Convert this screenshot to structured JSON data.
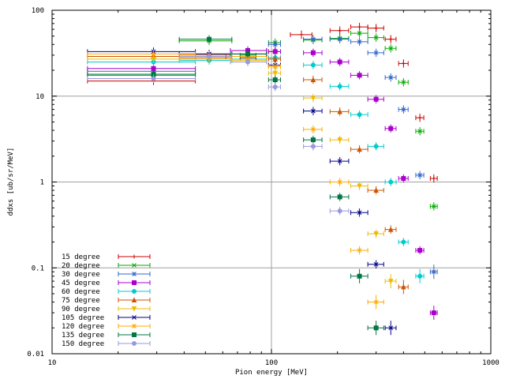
{
  "chart_data": {
    "type": "scatter",
    "title": "",
    "xlabel": "Pion energy [MeV]",
    "ylabel": "ddxs [ub/sr/MeV]",
    "x_scale": "log",
    "y_scale": "log",
    "xlim": [
      10,
      1000
    ],
    "ylim": [
      0.01,
      100
    ],
    "x_ticks": [
      10,
      100,
      1000
    ],
    "x_tick_labels": [
      "10",
      "100",
      "1000"
    ],
    "y_ticks": [
      0.01,
      0.1,
      1,
      10,
      100
    ],
    "y_tick_labels": [
      "0.01",
      "0.1",
      "1",
      "10",
      "100"
    ],
    "grid": true,
    "legend_position": "bottom-left",
    "series": [
      {
        "name": "15 degree",
        "color": "#cc0000",
        "marker": "plus",
        "points": [
          [
            29,
            15,
            14.5,
            45
          ],
          [
            52,
            29,
            45,
            62
          ],
          [
            78,
            28,
            72,
            85
          ],
          [
            104,
            33,
            97,
            110
          ],
          [
            137,
            52,
            122,
            153
          ],
          [
            205,
            58,
            185,
            225
          ],
          [
            252,
            64,
            230,
            275
          ],
          [
            300,
            62,
            275,
            325
          ],
          [
            350,
            46,
            330,
            370
          ],
          [
            400,
            24,
            380,
            420
          ],
          [
            475,
            5.6,
            455,
            495
          ],
          [
            550,
            1.1,
            530,
            570
          ]
        ]
      },
      {
        "name": "20 degree",
        "color": "#00aa00",
        "marker": "x",
        "points": [
          [
            29,
            17.5,
            14.5,
            45
          ],
          [
            52,
            44,
            38,
            66
          ],
          [
            78,
            30,
            72,
            85
          ],
          [
            104,
            42,
            97,
            110
          ],
          [
            155,
            45,
            140,
            170
          ],
          [
            205,
            47,
            185,
            225
          ],
          [
            252,
            54,
            230,
            275
          ],
          [
            300,
            48,
            275,
            325
          ],
          [
            350,
            36,
            330,
            370
          ],
          [
            400,
            14.5,
            380,
            420
          ],
          [
            475,
            3.9,
            455,
            495
          ],
          [
            550,
            0.52,
            530,
            570
          ]
        ]
      },
      {
        "name": "30 degree",
        "color": "#3366cc",
        "marker": "star",
        "points": [
          [
            29,
            19.5,
            14.5,
            45
          ],
          [
            52,
            31,
            38,
            66
          ],
          [
            78,
            34,
            65,
            95
          ],
          [
            104,
            40,
            97,
            110
          ],
          [
            155,
            46,
            140,
            170
          ],
          [
            205,
            46,
            185,
            225
          ],
          [
            252,
            43,
            230,
            275
          ],
          [
            300,
            32,
            275,
            325
          ],
          [
            350,
            16.5,
            330,
            370
          ],
          [
            400,
            7,
            380,
            420
          ],
          [
            475,
            1.2,
            455,
            495
          ],
          [
            550,
            0.09,
            530,
            570
          ]
        ]
      },
      {
        "name": "45 degree",
        "color": "#aa00cc",
        "marker": "box",
        "points": [
          [
            29,
            21,
            14.5,
            45
          ],
          [
            52,
            30,
            38,
            66
          ],
          [
            78,
            34,
            65,
            95
          ],
          [
            104,
            33,
            97,
            110
          ],
          [
            155,
            32,
            140,
            170
          ],
          [
            205,
            25,
            185,
            225
          ],
          [
            252,
            17.5,
            230,
            275
          ],
          [
            300,
            9.2,
            275,
            325
          ],
          [
            350,
            4.2,
            330,
            370
          ],
          [
            400,
            1.1,
            380,
            420
          ],
          [
            475,
            0.16,
            455,
            495
          ],
          [
            550,
            0.03,
            530,
            570
          ]
        ]
      },
      {
        "name": "60 degree",
        "color": "#00cccc",
        "marker": "circle",
        "points": [
          [
            29,
            25,
            14.5,
            45
          ],
          [
            52,
            26,
            38,
            66
          ],
          [
            78,
            27,
            65,
            95
          ],
          [
            104,
            28,
            97,
            110
          ],
          [
            155,
            23,
            140,
            170
          ],
          [
            205,
            13,
            185,
            225
          ],
          [
            252,
            6.1,
            230,
            275
          ],
          [
            300,
            2.6,
            275,
            325
          ],
          [
            350,
            1.0,
            330,
            370
          ],
          [
            400,
            0.2,
            380,
            420
          ],
          [
            475,
            0.08,
            455,
            495
          ]
        ]
      },
      {
        "name": "75 degree",
        "color": "#cc5500",
        "marker": "triangle",
        "points": [
          [
            29,
            29,
            14.5,
            45
          ],
          [
            52,
            28,
            38,
            66
          ],
          [
            78,
            29,
            65,
            95
          ],
          [
            104,
            27,
            97,
            110
          ],
          [
            155,
            15.5,
            140,
            170
          ],
          [
            205,
            6.6,
            185,
            225
          ],
          [
            252,
            2.4,
            230,
            275
          ],
          [
            300,
            0.8,
            275,
            325
          ],
          [
            350,
            0.28,
            330,
            370
          ],
          [
            400,
            0.06,
            380,
            420
          ]
        ]
      },
      {
        "name": "90 degree",
        "color": "#eebb00",
        "marker": "triangle-down",
        "points": [
          [
            29,
            27,
            14.5,
            45
          ],
          [
            52,
            27,
            38,
            66
          ],
          [
            78,
            26,
            65,
            95
          ],
          [
            104,
            18.5,
            97,
            110
          ],
          [
            155,
            9.5,
            140,
            170
          ],
          [
            205,
            3.1,
            185,
            225
          ],
          [
            252,
            0.9,
            230,
            275
          ],
          [
            300,
            0.25,
            275,
            325
          ],
          [
            350,
            0.07,
            330,
            370
          ]
        ]
      },
      {
        "name": "105 degree",
        "color": "#000088",
        "marker": "x",
        "points": [
          [
            29,
            33,
            14.5,
            45
          ],
          [
            52,
            31,
            38,
            66
          ],
          [
            78,
            31,
            65,
            95
          ],
          [
            104,
            23,
            97,
            110
          ],
          [
            155,
            6.7,
            140,
            170
          ],
          [
            205,
            1.75,
            185,
            225
          ],
          [
            252,
            0.44,
            230,
            275
          ],
          [
            300,
            0.11,
            275,
            325
          ],
          [
            350,
            0.02,
            330,
            370
          ]
        ]
      },
      {
        "name": "120 degree",
        "color": "#ffaa00",
        "marker": "star",
        "points": [
          [
            29,
            31,
            14.5,
            45
          ],
          [
            52,
            30,
            38,
            66
          ],
          [
            78,
            29,
            65,
            95
          ],
          [
            104,
            22,
            97,
            110
          ],
          [
            155,
            4.1,
            140,
            170
          ],
          [
            205,
            1.0,
            185,
            225
          ],
          [
            252,
            0.16,
            230,
            275
          ],
          [
            300,
            0.04,
            275,
            325
          ]
        ]
      },
      {
        "name": "135 degree",
        "color": "#007744",
        "marker": "box",
        "points": [
          [
            29,
            18,
            14.5,
            45
          ],
          [
            52,
            46,
            38,
            66
          ],
          [
            78,
            31,
            65,
            95
          ],
          [
            104,
            15.5,
            97,
            110
          ],
          [
            155,
            3.1,
            140,
            170
          ],
          [
            205,
            0.67,
            185,
            225
          ],
          [
            252,
            0.08,
            230,
            275
          ],
          [
            300,
            0.02,
            275,
            325
          ]
        ]
      },
      {
        "name": "150 degree",
        "color": "#9999dd",
        "marker": "circle",
        "points": [
          [
            29,
            16,
            14.5,
            45
          ],
          [
            52,
            29,
            38,
            66
          ],
          [
            78,
            25,
            65,
            95
          ],
          [
            104,
            12.8,
            97,
            110
          ],
          [
            155,
            2.6,
            140,
            170
          ],
          [
            205,
            0.46,
            185,
            225
          ]
        ]
      }
    ]
  }
}
